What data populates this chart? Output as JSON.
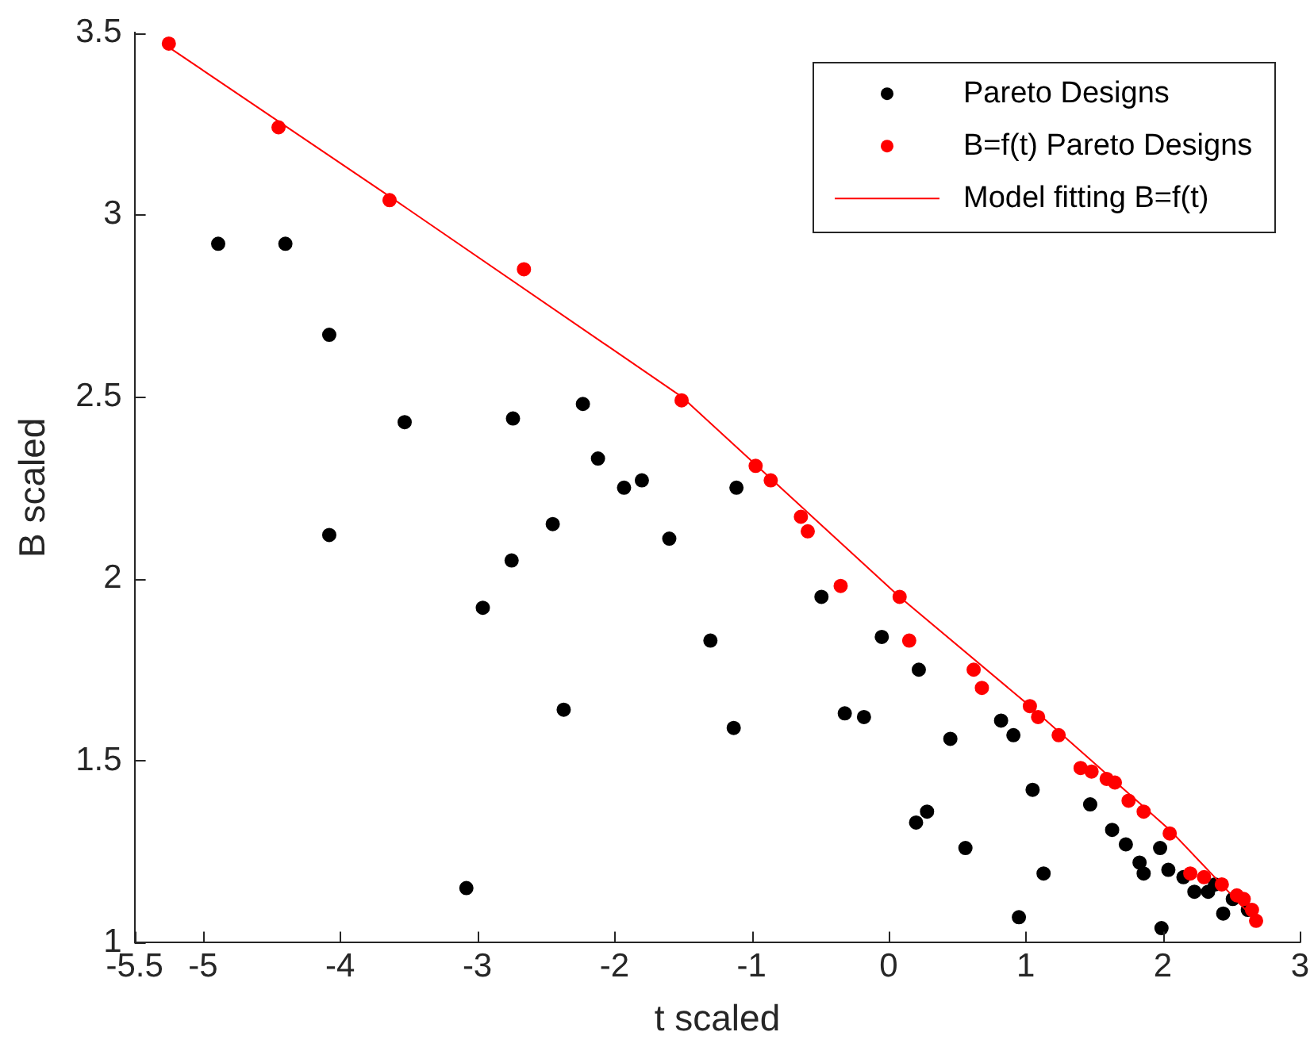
{
  "chart_data": {
    "type": "scatter",
    "xlabel": "t scaled",
    "ylabel": "B scaled",
    "xlim": [
      -5.5,
      3
    ],
    "ylim": [
      1,
      3.5
    ],
    "xticks": [
      -5.5,
      -5,
      -4,
      -3,
      -2,
      -1,
      0,
      1,
      2,
      3
    ],
    "yticks": [
      1,
      1.5,
      2,
      2.5,
      3,
      3.5
    ],
    "grid": false,
    "legend": "top right",
    "marker": "circle",
    "series": [
      {
        "name": "Pareto Designs",
        "color": "#000000",
        "x": [
          -4.89,
          -4.4,
          -4.08,
          -3.53,
          -2.74,
          -2.23,
          -2.12,
          -1.93,
          -1.8,
          -4.08,
          -2.45,
          -2.75,
          -2.96,
          -1.6,
          -1.3,
          -2.37,
          -3.08,
          -1.11,
          -0.49,
          -0.05,
          0.22,
          -1.13,
          -0.32,
          -0.18,
          0.45,
          0.82,
          0.91,
          1.05,
          1.47,
          1.63,
          0.2,
          0.28,
          0.56,
          1.13,
          0.95,
          1.73,
          1.83,
          1.86,
          1.98,
          2.04,
          1.99,
          2.15,
          2.23,
          2.33,
          2.38,
          2.44,
          2.51,
          2.62
        ],
        "values": [
          2.92,
          2.92,
          2.67,
          2.43,
          2.44,
          2.48,
          2.33,
          2.25,
          2.27,
          2.12,
          2.15,
          2.05,
          1.92,
          2.11,
          1.83,
          1.64,
          1.15,
          2.25,
          1.95,
          1.84,
          1.75,
          1.59,
          1.63,
          1.62,
          1.56,
          1.61,
          1.57,
          1.42,
          1.38,
          1.31,
          1.33,
          1.36,
          1.26,
          1.19,
          1.07,
          1.27,
          1.22,
          1.19,
          1.26,
          1.2,
          1.04,
          1.18,
          1.14,
          1.14,
          1.16,
          1.08,
          1.12,
          1.09
        ]
      },
      {
        "name": "B=f(t) Pareto Designs",
        "color": "#ff0000",
        "x": [
          -5.25,
          -4.45,
          -3.64,
          -2.66,
          -1.51,
          -0.97,
          -0.86,
          -0.64,
          -0.59,
          -0.35,
          0.08,
          0.15,
          0.62,
          0.68,
          1.03,
          1.09,
          1.24,
          1.4,
          1.48,
          1.59,
          1.65,
          1.75,
          1.86,
          2.05,
          2.2,
          2.3,
          2.43,
          2.54,
          2.59,
          2.65,
          2.68
        ],
        "values": [
          3.47,
          3.24,
          3.04,
          2.85,
          2.49,
          2.31,
          2.27,
          2.17,
          2.13,
          1.98,
          1.95,
          1.83,
          1.75,
          1.7,
          1.65,
          1.62,
          1.57,
          1.48,
          1.47,
          1.45,
          1.44,
          1.39,
          1.36,
          1.3,
          1.19,
          1.18,
          1.16,
          1.13,
          1.12,
          1.09,
          1.06
        ]
      },
      {
        "name": "Model fitting B=f(t)",
        "type": "line",
        "color": "#ff0000",
        "marker": "none",
        "line_style": "solid",
        "x": [
          -5.25,
          -3.64,
          -1.51,
          0.08,
          1.03,
          2.05,
          2.68
        ],
        "values": [
          3.46,
          3.05,
          2.5,
          1.95,
          1.65,
          1.31,
          1.06
        ]
      }
    ]
  }
}
